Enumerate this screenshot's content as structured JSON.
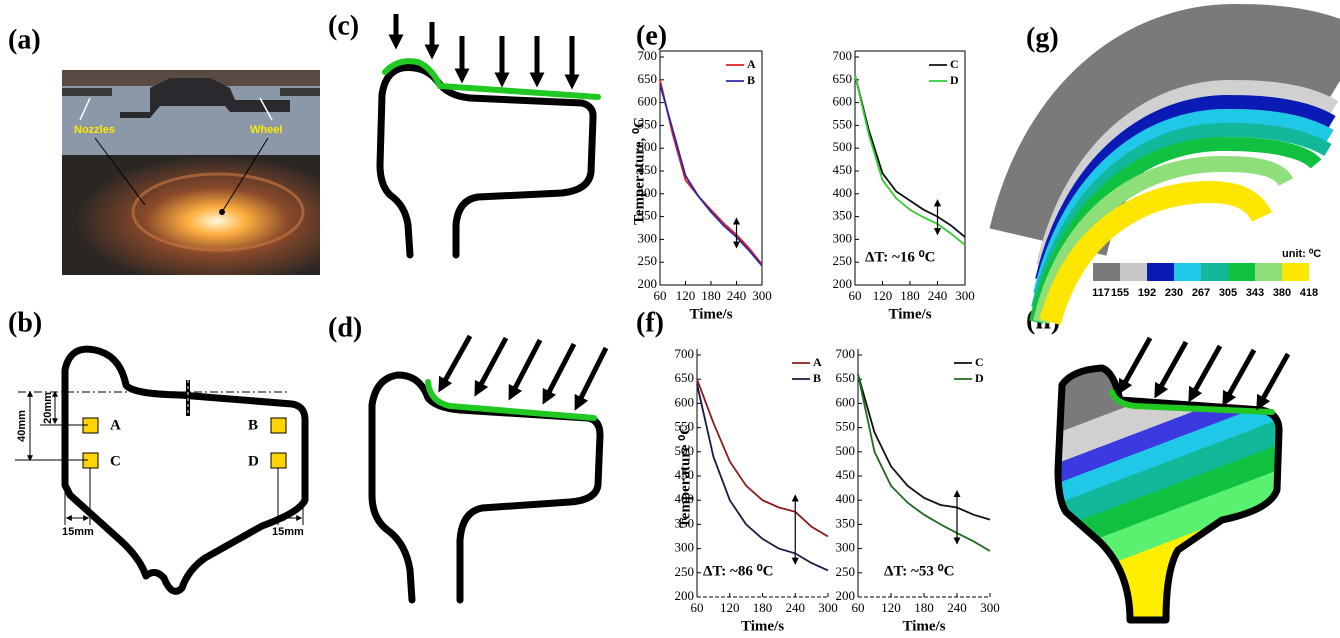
{
  "panels": {
    "a": {
      "label": "(a)",
      "nozzles": "Nozzles",
      "wheel": "Wheel"
    },
    "b": {
      "label": "(b)",
      "dim_20": "20mm",
      "dim_40": "40mm",
      "point_a": "A",
      "point_b": "B",
      "point_c": "C",
      "point_d": "D",
      "dim_15_left": "15mm",
      "dim_15_right": "15mm"
    },
    "c": {
      "label": "(c)"
    },
    "d": {
      "label": "(d)"
    },
    "e": {
      "label": "(e)"
    },
    "f": {
      "label": "(f)"
    },
    "g": {
      "label": "(g)",
      "unit": "unit: ⁰C",
      "colorbar": {
        "ticks": [
          117,
          155,
          192,
          230,
          267,
          305,
          343,
          380,
          418
        ],
        "colors": [
          "#7a7a7a",
          "#c8c8c8",
          "#0a1ab4",
          "#20c8e8",
          "#12b89a",
          "#10c040",
          "#8ede7a",
          "#ffe600"
        ]
      }
    },
    "h": {
      "label": "(h)"
    }
  },
  "chart_data": [
    {
      "type": "line",
      "y_label": "Temperature, ⁰C",
      "x_label": "Time/s",
      "x": [
        60,
        90,
        120,
        150,
        180,
        210,
        240,
        270,
        300
      ],
      "series": [
        {
          "name": "A",
          "color": "#e02020",
          "values": [
            650,
            530,
            430,
            395,
            365,
            335,
            310,
            280,
            245
          ]
        },
        {
          "name": "B",
          "color": "#2a2aa8",
          "values": [
            640,
            540,
            440,
            395,
            360,
            330,
            305,
            275,
            242
          ]
        }
      ],
      "xlim": [
        60,
        300
      ],
      "ylim": [
        200,
        700
      ],
      "xticks": [
        60,
        120,
        180,
        240,
        300
      ],
      "yticks": [
        200,
        250,
        300,
        350,
        400,
        450,
        500,
        550,
        600,
        650,
        700
      ]
    },
    {
      "type": "line",
      "x_label": "Time/s",
      "annotation": "ΔT: ~16 ⁰C",
      "x": [
        60,
        90,
        120,
        150,
        180,
        210,
        240,
        270,
        300
      ],
      "series": [
        {
          "name": "C",
          "color": "#111111",
          "values": [
            660,
            540,
            445,
            405,
            385,
            365,
            350,
            330,
            305
          ]
        },
        {
          "name": "D",
          "color": "#33cc33",
          "values": [
            660,
            530,
            430,
            390,
            365,
            348,
            334,
            312,
            288
          ]
        }
      ],
      "xlim": [
        60,
        300
      ],
      "ylim": [
        200,
        700
      ],
      "xticks": [
        60,
        120,
        180,
        240,
        300
      ],
      "yticks": [
        200,
        250,
        300,
        350,
        400,
        450,
        500,
        550,
        600,
        650,
        700
      ]
    },
    {
      "type": "line",
      "y_label": "Temperature ⁰C",
      "x_label": "Time/s",
      "annotation": "ΔT: ~86 ⁰C",
      "x": [
        60,
        90,
        120,
        150,
        180,
        210,
        240,
        270,
        300
      ],
      "series": [
        {
          "name": "A",
          "color": "#8b1a1a",
          "values": [
            650,
            560,
            480,
            430,
            400,
            385,
            376,
            345,
            325
          ]
        },
        {
          "name": "B",
          "color": "#1a1a40",
          "values": [
            640,
            490,
            400,
            350,
            320,
            300,
            290,
            270,
            255
          ]
        }
      ],
      "xlim": [
        60,
        300
      ],
      "ylim": [
        200,
        700
      ],
      "xticks": [
        60,
        120,
        180,
        240,
        300
      ],
      "yticks": [
        200,
        250,
        300,
        350,
        400,
        450,
        500,
        550,
        600,
        650,
        700
      ]
    },
    {
      "type": "line",
      "x_label": "Time/s",
      "annotation": "ΔT: ~53 ⁰C",
      "x": [
        60,
        90,
        120,
        150,
        180,
        210,
        240,
        270,
        300
      ],
      "series": [
        {
          "name": "C",
          "color": "#111111",
          "values": [
            660,
            540,
            470,
            430,
            405,
            390,
            385,
            370,
            360
          ]
        },
        {
          "name": "D",
          "color": "#1f6b1f",
          "values": [
            660,
            500,
            430,
            395,
            370,
            350,
            332,
            315,
            295
          ]
        }
      ],
      "xlim": [
        60,
        300
      ],
      "ylim": [
        200,
        700
      ],
      "xticks": [
        60,
        120,
        180,
        240,
        300
      ],
      "yticks": [
        200,
        250,
        300,
        350,
        400,
        450,
        500,
        550,
        600,
        650,
        700
      ]
    }
  ]
}
